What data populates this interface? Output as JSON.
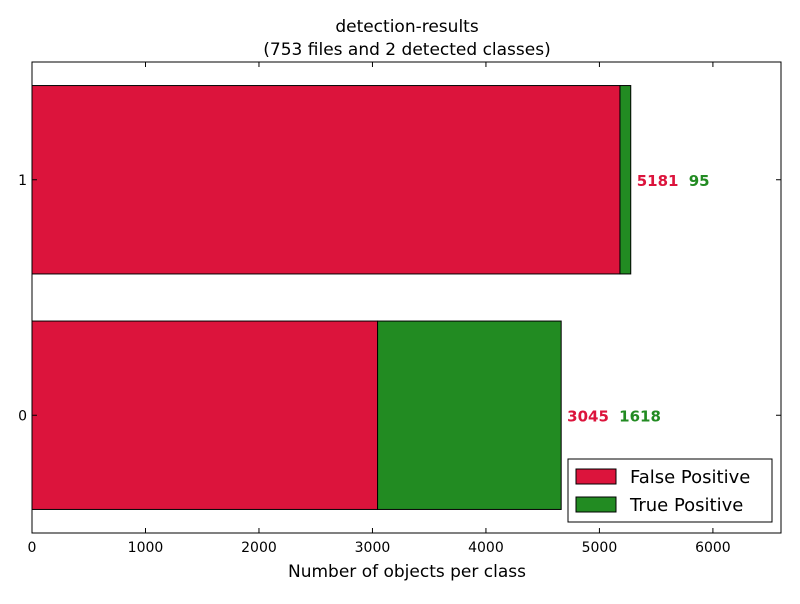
{
  "chart_data": {
    "type": "bar",
    "orientation": "horizontal",
    "stacked": true,
    "title": "detection-results",
    "subtitle": "(753 files and 2 detected classes)",
    "xlabel": "Number of objects per class",
    "ylabel": "",
    "xlim": [
      0,
      6600
    ],
    "x_ticks": [
      0,
      1000,
      2000,
      3000,
      4000,
      5000,
      6000
    ],
    "categories": [
      "1",
      "0"
    ],
    "series": [
      {
        "name": "False Positive",
        "color": "#dc143c",
        "values": [
          5181,
          3045
        ]
      },
      {
        "name": "True Positive",
        "color": "#228b22",
        "values": [
          95,
          1618
        ]
      }
    ],
    "legend_position": "bottom-right",
    "grid": false
  }
}
